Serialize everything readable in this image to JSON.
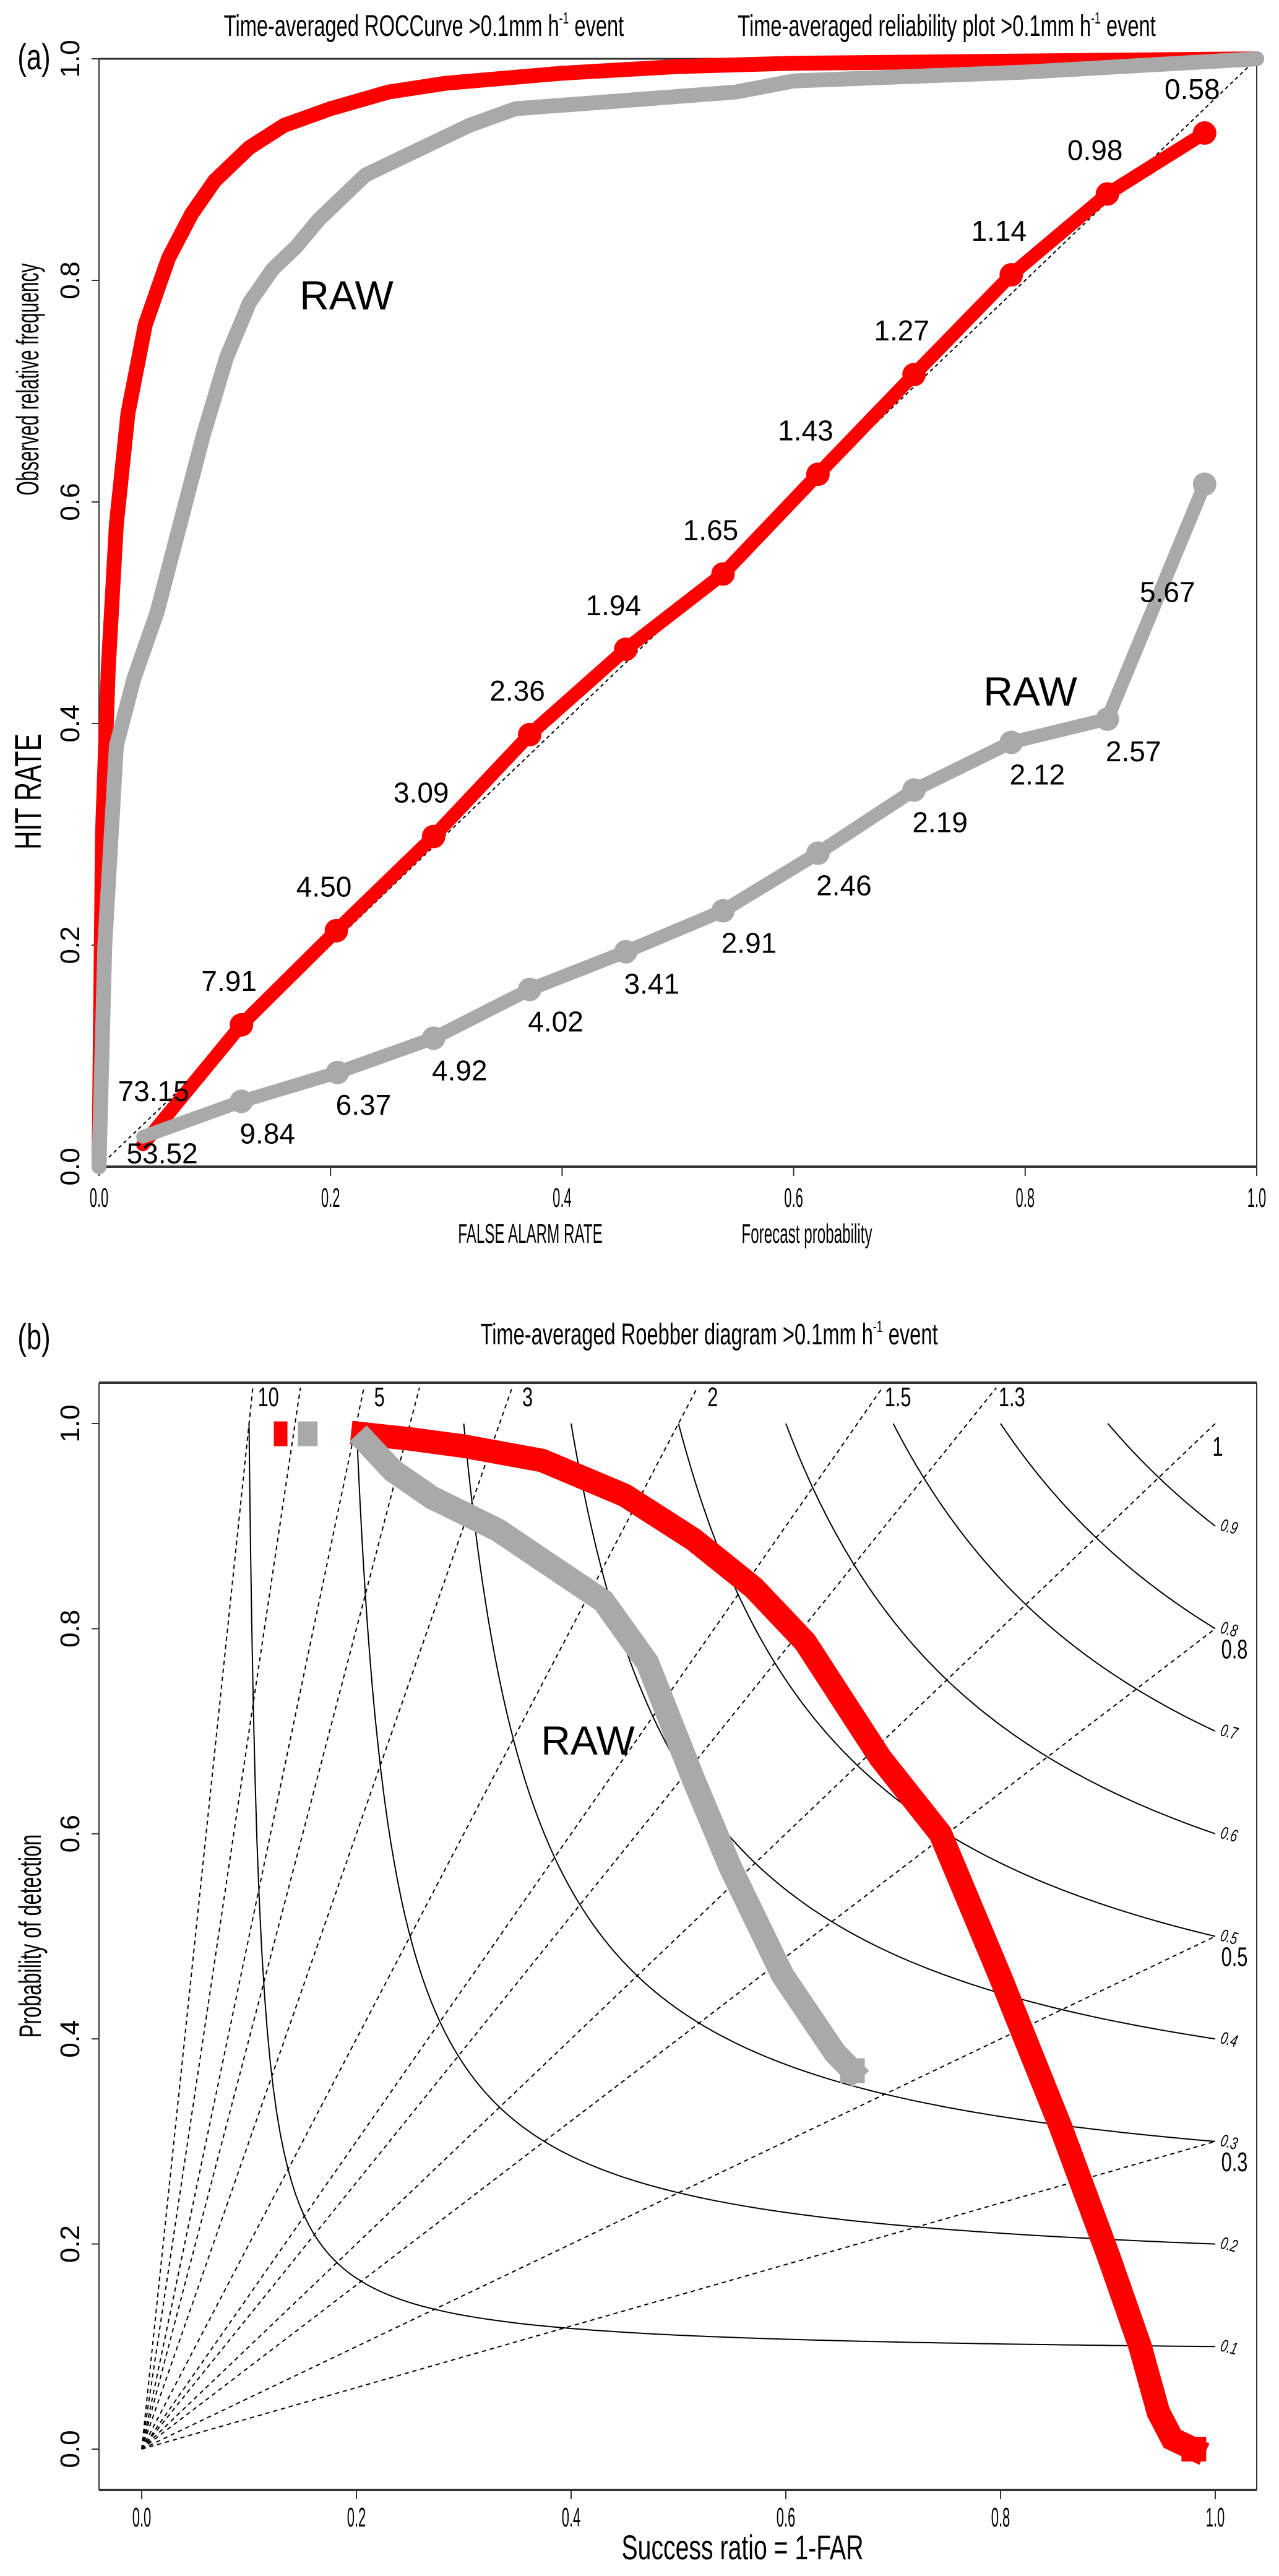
{
  "panel_labels": {
    "a": "(a)",
    "b": "(b)"
  },
  "chart_data": [
    {
      "type": "line",
      "panel": "a",
      "title": {
        "text": "Time-averaged ROCCurve >0.1mm h",
        "sup": "-1",
        "tail": " event"
      },
      "xlabel": "FALSE ALARM RATE",
      "ylabel": "HIT RATE",
      "xlim": [
        0,
        1
      ],
      "ylim": [
        0,
        1
      ],
      "xticks": [
        "0.0",
        "0.2",
        "0.4",
        "0.6",
        "0.8",
        "1.0"
      ],
      "yticks": [
        "0.0",
        "0.2",
        "0.4",
        "0.6",
        "0.8",
        "1.0"
      ],
      "diagonal": true,
      "series": [
        {
          "color": "#ff0000",
          "x": [
            0,
            0.003,
            0.008,
            0.015,
            0.025,
            0.04,
            0.06,
            0.08,
            0.1,
            0.13,
            0.16,
            0.2,
            0.25,
            0.3,
            0.4,
            0.5,
            0.6,
            0.8,
            1.0
          ],
          "y": [
            0,
            0.3,
            0.45,
            0.58,
            0.68,
            0.76,
            0.82,
            0.86,
            0.89,
            0.92,
            0.94,
            0.955,
            0.97,
            0.978,
            0.987,
            0.993,
            0.996,
            0.998,
            1.0
          ]
        },
        {
          "color": "#a9a9a9",
          "annotation": "RAW",
          "x": [
            0,
            0.005,
            0.015,
            0.03,
            0.05,
            0.07,
            0.09,
            0.11,
            0.13,
            0.15,
            0.17,
            0.19,
            0.21,
            0.23,
            0.26,
            0.29,
            0.32,
            0.36,
            0.45,
            0.55,
            0.6,
            0.8,
            1.0
          ],
          "y": [
            0,
            0.2,
            0.38,
            0.44,
            0.5,
            0.58,
            0.66,
            0.73,
            0.78,
            0.81,
            0.83,
            0.855,
            0.875,
            0.895,
            0.91,
            0.925,
            0.94,
            0.955,
            0.962,
            0.97,
            0.98,
            0.988,
            1.0
          ]
        }
      ]
    },
    {
      "type": "line",
      "panel": "a",
      "title": {
        "text": "Time-averaged reliability plot >0.1mm h",
        "sup": "-1",
        "tail": " event"
      },
      "xlabel": "Forecast probability",
      "ylabel": "Observed relative frequency",
      "xlim": [
        0,
        1
      ],
      "ylim": [
        0,
        1
      ],
      "series": [
        {
          "color": "#ff0000",
          "x": [
            0.038,
            0.123,
            0.205,
            0.289,
            0.372,
            0.455,
            0.539,
            0.621,
            0.704,
            0.788,
            0.871,
            0.955
          ],
          "y": [
            0.02,
            0.128,
            0.213,
            0.298,
            0.39,
            0.467,
            0.535,
            0.625,
            0.715,
            0.805,
            0.878,
            0.933
          ],
          "labels": [
            "73.15",
            "7.91",
            "4.50",
            "3.09",
            "2.36",
            "1.94",
            "1.65",
            "1.43",
            "1.27",
            "1.14",
            "0.98",
            "0.58"
          ]
        },
        {
          "color": "#a9a9a9",
          "annotation": "RAW",
          "x": [
            0.038,
            0.123,
            0.206,
            0.289,
            0.372,
            0.455,
            0.539,
            0.621,
            0.704,
            0.788,
            0.871,
            0.955
          ],
          "y": [
            0.027,
            0.059,
            0.085,
            0.116,
            0.16,
            0.194,
            0.231,
            0.283,
            0.34,
            0.383,
            0.404,
            0.616
          ],
          "labels": [
            "53.52",
            "9.84",
            "6.37",
            "4.92",
            "4.02",
            "3.41",
            "2.91",
            "2.46",
            "2.19",
            "2.12",
            "2.57",
            "5.67"
          ]
        }
      ]
    },
    {
      "type": "scatter",
      "panel": "b",
      "title": {
        "text": "Time-averaged  Roebber diagram >0.1mm h",
        "sup": "-1",
        "tail": " event"
      },
      "xlabel": "Success ratio = 1-FAR",
      "ylabel": "Probability of detection",
      "xlim": [
        0,
        1
      ],
      "ylim": [
        0,
        1
      ],
      "xticks": [
        "0.0",
        "0.2",
        "0.4",
        "0.6",
        "0.8",
        "1.0"
      ],
      "yticks": [
        "0.0",
        "0.2",
        "0.4",
        "0.6",
        "0.8",
        "1.0"
      ],
      "bias_lines": [
        {
          "value": 10,
          "label": "10"
        },
        {
          "value": 7,
          "label": ""
        },
        {
          "value": 5,
          "label": "5"
        },
        {
          "value": 4,
          "label": ""
        },
        {
          "value": 3,
          "label": "3"
        },
        {
          "value": 2,
          "label": "2"
        },
        {
          "value": 1.5,
          "label": "1.5"
        },
        {
          "value": 1.3,
          "label": "1.3"
        },
        {
          "value": 1,
          "label": "1"
        },
        {
          "value": 0.8,
          "label": "0.8"
        },
        {
          "value": 0.5,
          "label": "0.5"
        },
        {
          "value": 0.3,
          "label": "0.3"
        }
      ],
      "csi_lines": [
        {
          "value": 0.1,
          "label": "0.1"
        },
        {
          "value": 0.2,
          "label": "0.2"
        },
        {
          "value": 0.3,
          "label": "0.3"
        },
        {
          "value": 0.4,
          "label": "0.4"
        },
        {
          "value": 0.5,
          "label": "0.5"
        },
        {
          "value": 0.6,
          "label": "0.6"
        },
        {
          "value": 0.7,
          "label": "0.7"
        },
        {
          "value": 0.8,
          "label": "0.8"
        },
        {
          "value": 0.9,
          "label": "0.9"
        }
      ],
      "series": [
        {
          "color": "#ff0000",
          "x": [
            0.13,
            0.206,
            0.25,
            0.3,
            0.373,
            0.45,
            0.514,
            0.57,
            0.618,
            0.688,
            0.744,
            0.8,
            0.856,
            0.9,
            0.93,
            0.947,
            0.96,
            0.98
          ],
          "y": [
            0.99,
            0.99,
            0.985,
            0.978,
            0.964,
            0.93,
            0.887,
            0.84,
            0.787,
            0.674,
            0.6,
            0.46,
            0.314,
            0.19,
            0.1,
            0.036,
            0.01,
            0.0
          ]
        },
        {
          "color": "#a9a9a9",
          "annotation": "RAW",
          "x": [
            0.15,
            0.209,
            0.234,
            0.27,
            0.332,
            0.373,
            0.43,
            0.471,
            0.514,
            0.548,
            0.597,
            0.646,
            0.662
          ],
          "y": [
            0.99,
            0.982,
            0.954,
            0.928,
            0.896,
            0.867,
            0.827,
            0.767,
            0.653,
            0.568,
            0.462,
            0.386,
            0.369
          ]
        }
      ]
    }
  ]
}
